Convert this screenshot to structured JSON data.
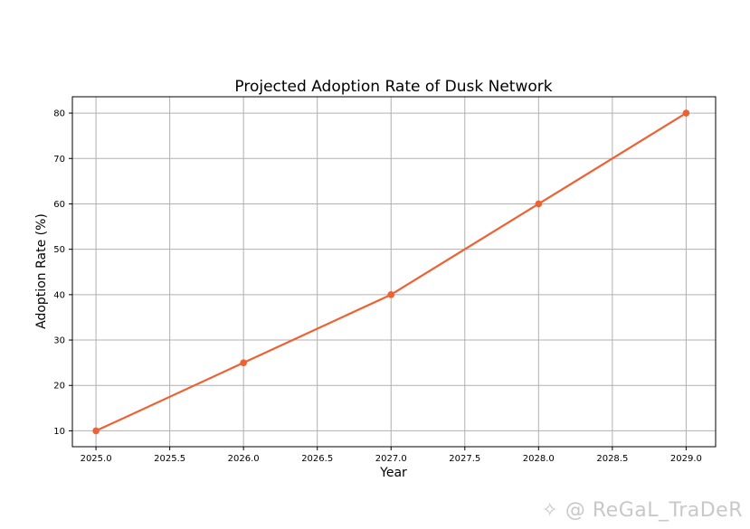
{
  "chart_data": {
    "type": "line",
    "title": "Projected Adoption Rate of Dusk Network",
    "xlabel": "Year",
    "ylabel": "Adoption Rate (%)",
    "x": [
      2025,
      2026,
      2027,
      2028,
      2029
    ],
    "series": [
      {
        "values": [
          10,
          25,
          40,
          60,
          80
        ],
        "color": "#ee6132",
        "marker": "circle"
      }
    ],
    "xlim": [
      2024.84,
      2029.2
    ],
    "ylim": [
      6.5,
      83.6
    ],
    "xticks": [
      "2025.0",
      "2025.5",
      "2026.0",
      "2026.5",
      "2027.0",
      "2027.5",
      "2028.0",
      "2028.5",
      "2029.0"
    ],
    "yticks": [
      "10",
      "20",
      "30",
      "40",
      "50",
      "60",
      "70",
      "80"
    ],
    "grid": true,
    "legend": "none"
  },
  "watermark": {
    "text": "@ ReGaL_TraDeR",
    "icon": "binance-square-icon"
  }
}
